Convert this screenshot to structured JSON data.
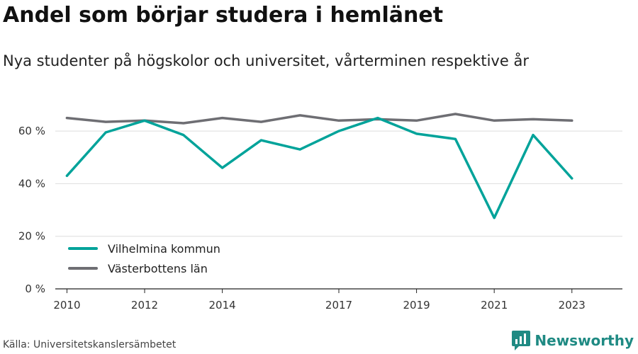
{
  "title": "Andel som börjar studera i hemlänet",
  "subtitle": "Nya studenter på högskolor och universitet, vårterminen respektive år",
  "source": "Källa: Universitetskanslersämbetet",
  "brand": {
    "name": "Newsworthy",
    "icon": "newsworthy-logo-icon",
    "color": "#1f8a83"
  },
  "chart_data": {
    "type": "line",
    "x": [
      2010,
      2011,
      2012,
      2013,
      2014,
      2015,
      2016,
      2017,
      2018,
      2019,
      2020,
      2021,
      2022,
      2023
    ],
    "x_tick_labels": [
      "2010",
      "2012",
      "2014",
      "2017",
      "2019",
      "2021",
      "2023"
    ],
    "y_tick_labels": [
      "0 %",
      "20 %",
      "40 %",
      "60 %"
    ],
    "y_ticks": [
      0,
      20,
      40,
      60
    ],
    "ylim": [
      0,
      70
    ],
    "grid": "horizontal",
    "legend_position": "bottom-left",
    "series": [
      {
        "name": "Vilhelmina kommun",
        "color": "#00a39a",
        "values": [
          43,
          59.5,
          64,
          58.5,
          46,
          56.5,
          53,
          60,
          65,
          59,
          57,
          27,
          58.5,
          42
        ]
      },
      {
        "name": "Västerbottens län",
        "color": "#6e6e73",
        "values": [
          65,
          63.5,
          64,
          63,
          65,
          63.5,
          66,
          64,
          64.5,
          64,
          66.5,
          64,
          64.5,
          64
        ]
      }
    ]
  }
}
